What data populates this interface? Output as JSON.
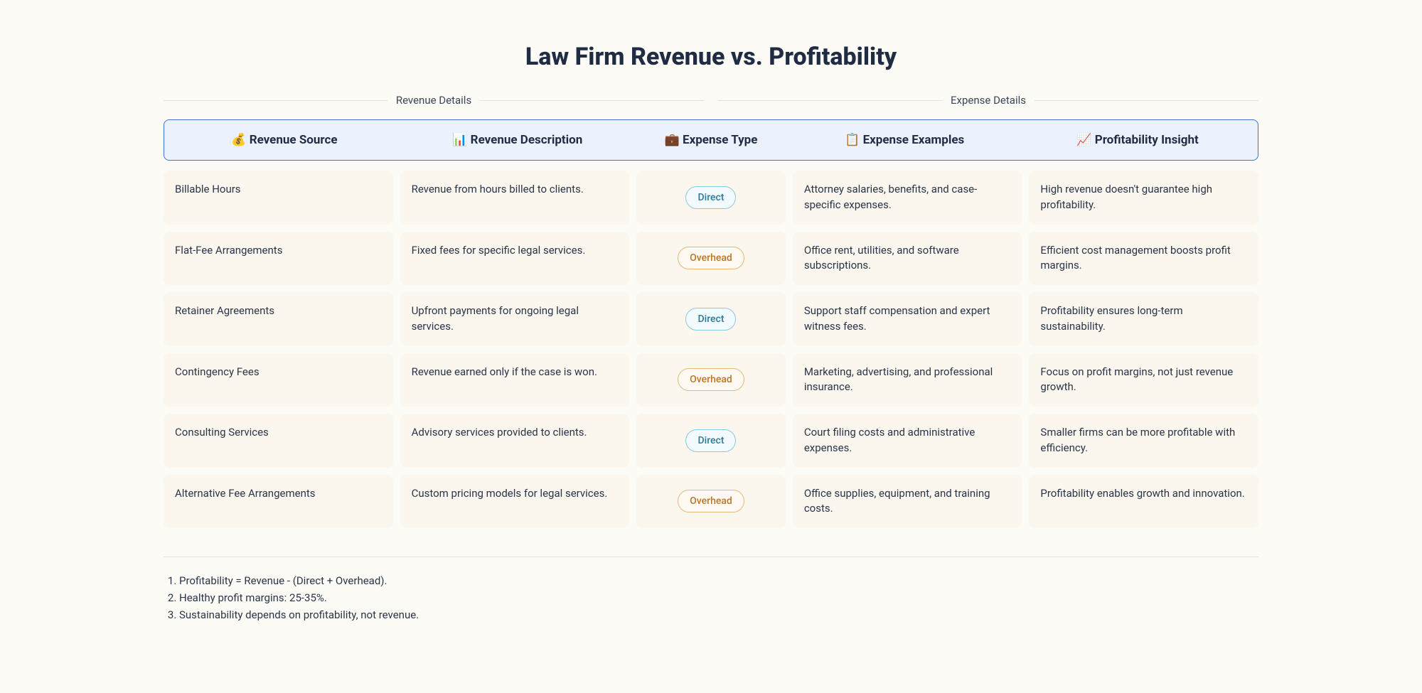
{
  "title": "Law Firm Revenue vs. Profitability",
  "section_labels": {
    "left": "Revenue Details",
    "right": "Expense Details"
  },
  "columns": [
    {
      "icon": "💰",
      "label": "Revenue Source"
    },
    {
      "icon": "📊",
      "label": "Revenue Description"
    },
    {
      "icon": "💼",
      "label": "Expense Type"
    },
    {
      "icon": "📋",
      "label": "Expense Examples"
    },
    {
      "icon": "📈",
      "label": "Profitability Insight"
    }
  ],
  "expense_types": {
    "direct": {
      "label": "Direct",
      "class": "direct"
    },
    "overhead": {
      "label": "Overhead",
      "class": "overhead"
    }
  },
  "rows": [
    {
      "source": "Billable Hours",
      "desc": "Revenue from hours billed to clients.",
      "type": "direct",
      "examples": "Attorney salaries, benefits, and case-specific expenses.",
      "insight": "High revenue doesn't guarantee high profitability."
    },
    {
      "source": "Flat-Fee Arrangements",
      "desc": "Fixed fees for specific legal services.",
      "type": "overhead",
      "examples": "Office rent, utilities, and software subscriptions.",
      "insight": "Efficient cost management boosts profit margins."
    },
    {
      "source": "Retainer Agreements",
      "desc": "Upfront payments for ongoing legal services.",
      "type": "direct",
      "examples": "Support staff compensation and expert witness fees.",
      "insight": "Profitability ensures long-term sustainability."
    },
    {
      "source": "Contingency Fees",
      "desc": "Revenue earned only if the case is won.",
      "type": "overhead",
      "examples": "Marketing, advertising, and professional insurance.",
      "insight": "Focus on profit margins, not just revenue growth."
    },
    {
      "source": "Consulting Services",
      "desc": "Advisory services provided to clients.",
      "type": "direct",
      "examples": "Court filing costs and administrative expenses.",
      "insight": "Smaller firms can be more profitable with efficiency."
    },
    {
      "source": "Alternative Fee Arrangements",
      "desc": "Custom pricing models for legal services.",
      "type": "overhead",
      "examples": "Office supplies, equipment, and training costs.",
      "insight": "Profitability enables growth and innovation."
    }
  ],
  "footer_notes": [
    "Profitability = Revenue - (Direct + Overhead).",
    "Healthy profit margins: 25-35%.",
    "Sustainability depends on profitability, not revenue."
  ],
  "style": {
    "background": "#fdfbf6",
    "cell_bg": "#fbf7ef",
    "header_bg": "#ecf2fd",
    "header_border": "#3f74d6",
    "text_color": "#1f2c44",
    "pill_direct": {
      "text": "#2b7a9b",
      "border": "#8ec8dc",
      "bg": "#f3fafd"
    },
    "pill_overhead": {
      "text": "#b8772a",
      "border": "#e6b877",
      "bg": "#fefaf3"
    }
  }
}
